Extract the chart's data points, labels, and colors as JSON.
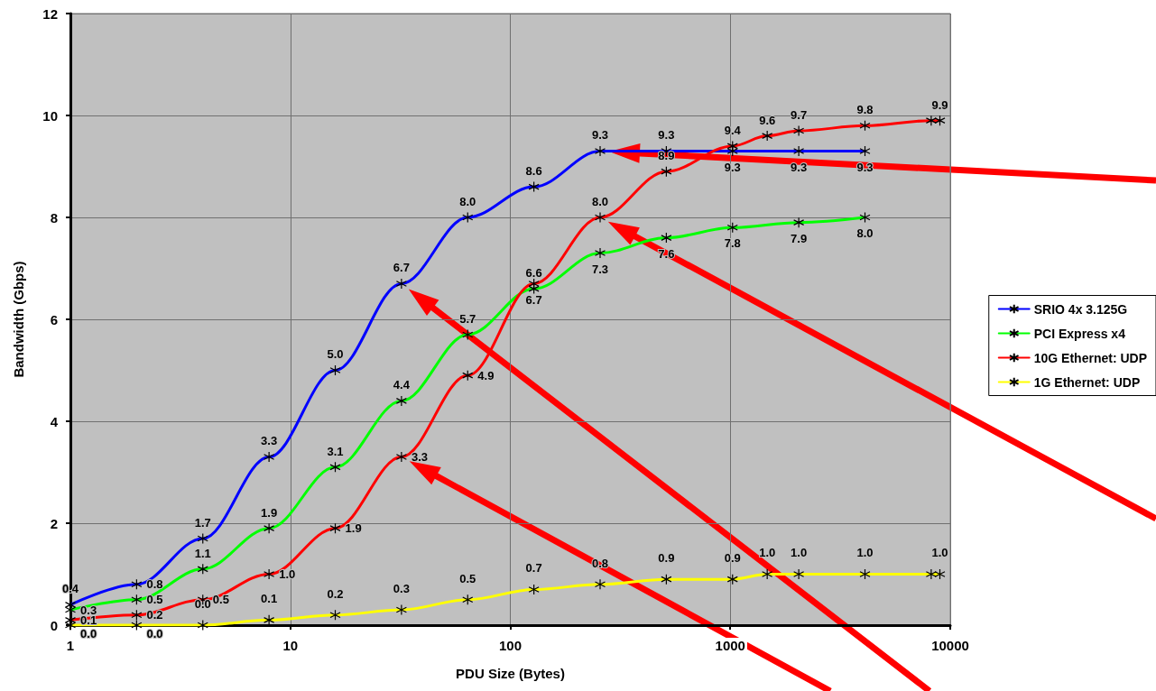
{
  "chart_data": {
    "type": "line",
    "xlabel": "PDU Size (Bytes)",
    "ylabel": "Bandwidth (Gbps)",
    "log": "x",
    "xlim": [
      1,
      10000
    ],
    "xticks": [
      1,
      10,
      100,
      1000,
      10000
    ],
    "ylim": [
      0,
      12
    ],
    "yticks": [
      0,
      2,
      4,
      6,
      8,
      10,
      12
    ],
    "grid": true,
    "legend": "right",
    "marker": "cross",
    "line_style": "solid",
    "series": [
      {
        "name": "SRIO 4x 3.125G",
        "color": "#0000ff",
        "x": [
          1,
          2,
          4,
          8,
          16,
          32,
          64,
          128,
          256,
          512,
          1024,
          2048,
          4096
        ],
        "values": [
          0.4,
          0.8,
          1.7,
          3.3,
          5.0,
          6.7,
          8.0,
          8.6,
          9.3,
          9.3,
          9.3,
          9.3,
          9.3
        ],
        "value_labels": [
          "0.4",
          "0.8",
          "1.7",
          "3.3",
          "5.0",
          "6.7",
          "8.0",
          "8.6",
          "9.3",
          "9.3",
          "9.3",
          "9.3",
          "9.3"
        ]
      },
      {
        "name": "PCI Express x4",
        "color": "#00ff00",
        "x": [
          1,
          2,
          4,
          8,
          16,
          32,
          64,
          128,
          256,
          512,
          1024,
          2048,
          4096
        ],
        "values": [
          0.3,
          0.5,
          1.1,
          1.9,
          3.1,
          4.4,
          5.7,
          6.6,
          7.3,
          7.6,
          7.8,
          7.9,
          8.0
        ],
        "value_labels": [
          "0.3",
          "0.5",
          "1.1",
          "1.9",
          "3.1",
          "4.4",
          "5.7",
          "6.6",
          "7.3",
          "7.6",
          "7.8",
          "7.9",
          "8.0"
        ]
      },
      {
        "name": "10G Ethernet: UDP",
        "color": "#ff0000",
        "x": [
          1,
          2,
          4,
          8,
          16,
          32,
          64,
          128,
          256,
          512,
          1024,
          1472,
          2048,
          4096,
          8192,
          8972
        ],
        "values": [
          0.1,
          0.2,
          0.5,
          1.0,
          1.9,
          3.3,
          4.9,
          6.7,
          8.0,
          8.9,
          9.4,
          9.6,
          9.7,
          9.8,
          9.9,
          9.9
        ],
        "value_labels": [
          "0.1",
          "0.2",
          "0.5",
          "1.0",
          "1.9",
          "3.3",
          "4.9",
          "6.7",
          "8.0",
          "8.9",
          "9.4",
          "9.6",
          "9.7",
          "9.8",
          null,
          "9.9"
        ]
      },
      {
        "name": "1G Ethernet: UDP",
        "color": "#ffff00",
        "x": [
          1,
          2,
          4,
          8,
          16,
          32,
          64,
          128,
          256,
          512,
          1024,
          1472,
          2048,
          4096,
          8192,
          8972
        ],
        "values": [
          0.0,
          0.0,
          0.0,
          0.1,
          0.2,
          0.3,
          0.5,
          0.7,
          0.8,
          0.9,
          0.9,
          1.0,
          1.0,
          1.0,
          1.0,
          1.0
        ],
        "value_labels": [
          "0.0",
          "0.0",
          "0.0",
          "0.1",
          "0.2",
          "0.3",
          "0.5",
          "0.7",
          "0.8",
          "0.9",
          "0.9",
          "1.0",
          "1.0",
          "1.0",
          null,
          "1.0"
        ]
      }
    ]
  }
}
